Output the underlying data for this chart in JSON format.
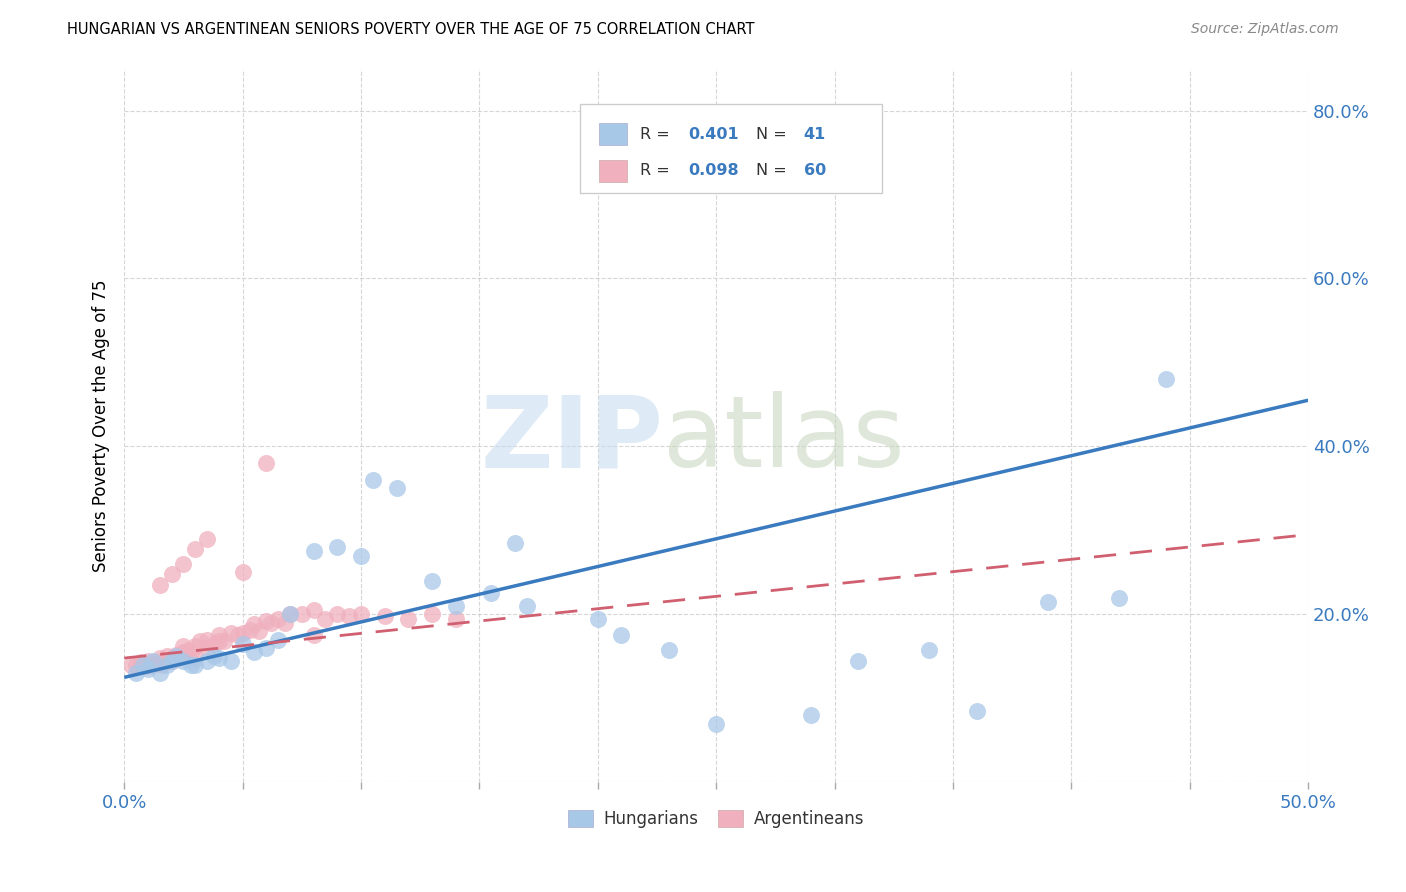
{
  "title": "HUNGARIAN VS ARGENTINEAN SENIORS POVERTY OVER THE AGE OF 75 CORRELATION CHART",
  "source": "Source: ZipAtlas.com",
  "ylabel": "Seniors Poverty Over the Age of 75",
  "xlim": [
    0.0,
    0.5
  ],
  "ylim": [
    0.0,
    0.85
  ],
  "hungarian_R": 0.401,
  "hungarian_N": 41,
  "argentinean_R": 0.098,
  "argentinean_N": 60,
  "hungarian_color": "#a8c8e8",
  "argentinean_color": "#f0b0be",
  "hungarian_line_color": "#3a7abf",
  "argentinean_line_color": "#d06070",
  "hung_line_x": [
    0.0,
    0.5
  ],
  "hung_line_y": [
    0.125,
    0.455
  ],
  "arg_line_x": [
    0.0,
    0.5
  ],
  "arg_line_y": [
    0.148,
    0.295
  ],
  "hung_x": [
    0.005,
    0.008,
    0.01,
    0.012,
    0.015,
    0.018,
    0.02,
    0.022,
    0.025,
    0.028,
    0.03,
    0.035,
    0.038,
    0.04,
    0.045,
    0.05,
    0.055,
    0.06,
    0.065,
    0.07,
    0.08,
    0.09,
    0.1,
    0.105,
    0.115,
    0.13,
    0.14,
    0.155,
    0.165,
    0.17,
    0.2,
    0.21,
    0.23,
    0.25,
    0.29,
    0.31,
    0.34,
    0.36,
    0.39,
    0.42,
    0.44
  ],
  "hung_y": [
    0.13,
    0.14,
    0.135,
    0.145,
    0.13,
    0.14,
    0.145,
    0.15,
    0.145,
    0.14,
    0.14,
    0.145,
    0.15,
    0.148,
    0.145,
    0.165,
    0.155,
    0.16,
    0.17,
    0.2,
    0.275,
    0.28,
    0.27,
    0.36,
    0.35,
    0.24,
    0.21,
    0.225,
    0.285,
    0.21,
    0.195,
    0.175,
    0.158,
    0.07,
    0.08,
    0.145,
    0.158,
    0.085,
    0.215,
    0.22,
    0.48
  ],
  "arg_x": [
    0.003,
    0.005,
    0.007,
    0.008,
    0.009,
    0.01,
    0.01,
    0.012,
    0.013,
    0.015,
    0.015,
    0.016,
    0.018,
    0.018,
    0.02,
    0.02,
    0.022,
    0.023,
    0.025,
    0.025,
    0.027,
    0.028,
    0.03,
    0.03,
    0.032,
    0.035,
    0.035,
    0.038,
    0.04,
    0.04,
    0.042,
    0.045,
    0.048,
    0.05,
    0.053,
    0.055,
    0.057,
    0.06,
    0.062,
    0.065,
    0.068,
    0.07,
    0.075,
    0.08,
    0.085,
    0.09,
    0.095,
    0.1,
    0.11,
    0.12,
    0.13,
    0.14,
    0.015,
    0.02,
    0.025,
    0.03,
    0.035,
    0.05,
    0.06,
    0.08
  ],
  "arg_y": [
    0.14,
    0.14,
    0.143,
    0.138,
    0.142,
    0.138,
    0.145,
    0.14,
    0.143,
    0.142,
    0.148,
    0.14,
    0.15,
    0.145,
    0.148,
    0.145,
    0.152,
    0.148,
    0.155,
    0.162,
    0.158,
    0.155,
    0.162,
    0.148,
    0.168,
    0.17,
    0.16,
    0.165,
    0.168,
    0.175,
    0.168,
    0.178,
    0.175,
    0.178,
    0.182,
    0.188,
    0.18,
    0.192,
    0.19,
    0.195,
    0.19,
    0.2,
    0.2,
    0.205,
    0.195,
    0.2,
    0.198,
    0.2,
    0.198,
    0.195,
    0.2,
    0.195,
    0.235,
    0.248,
    0.26,
    0.278,
    0.29,
    0.25,
    0.38,
    0.175
  ]
}
